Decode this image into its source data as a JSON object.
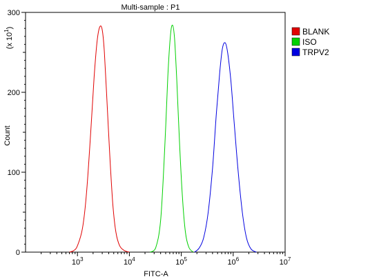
{
  "chart_data": {
    "type": "line",
    "title": "Multi-sample : P1",
    "xlabel": "FITC-A",
    "ylabel": "Count",
    "y_multiplier_base": "(x 10",
    "y_multiplier_exp": "1",
    "y_multiplier_close": ")",
    "x_scale": "log",
    "xlim": [
      100,
      10000000
    ],
    "ylim": [
      0,
      300
    ],
    "x_ticks": [
      {
        "base": "10",
        "exp": "3",
        "value": 1000
      },
      {
        "base": "10",
        "exp": "4",
        "value": 10000
      },
      {
        "base": "10",
        "exp": "5",
        "value": 100000
      },
      {
        "base": "10",
        "exp": "6",
        "value": 1000000
      },
      {
        "base": "10",
        "exp": "7",
        "value": 10000000
      }
    ],
    "y_ticks": [
      {
        "label": "0",
        "value": 0
      },
      {
        "label": "100",
        "value": 100
      },
      {
        "label": "200",
        "value": 200
      },
      {
        "label": "300",
        "value": 300
      }
    ],
    "grid": false,
    "legend_position": "right",
    "series": [
      {
        "name": "BLANK",
        "color": "#e00000",
        "x": [
          700,
          850,
          1000,
          1250,
          1500,
          1800,
          2100,
          2400,
          2700,
          3000,
          3300,
          3700,
          4200,
          4800,
          5500,
          6500,
          8000,
          10000
        ],
        "y": [
          0,
          2,
          8,
          30,
          75,
          150,
          220,
          265,
          282,
          278,
          250,
          190,
          120,
          60,
          25,
          8,
          2,
          0
        ]
      },
      {
        "name": "ISO",
        "color": "#00d000",
        "x": [
          25000,
          32000,
          40000,
          48000,
          55000,
          62000,
          68000,
          74000,
          82000,
          92000,
          105000,
          120000,
          140000,
          170000
        ],
        "y": [
          0,
          5,
          40,
          130,
          220,
          272,
          284,
          268,
          215,
          140,
          70,
          25,
          6,
          0
        ]
      },
      {
        "name": "TRPV2",
        "color": "#0000e0",
        "x": [
          180000,
          220000,
          270000,
          330000,
          400000,
          470000,
          550000,
          620000,
          700000,
          780000,
          900000,
          1050000,
          1250000,
          1500000,
          1800000,
          2200000,
          2800000
        ],
        "y": [
          0,
          5,
          18,
          50,
          105,
          170,
          225,
          255,
          262,
          250,
          215,
          160,
          100,
          50,
          18,
          4,
          0
        ]
      }
    ]
  }
}
